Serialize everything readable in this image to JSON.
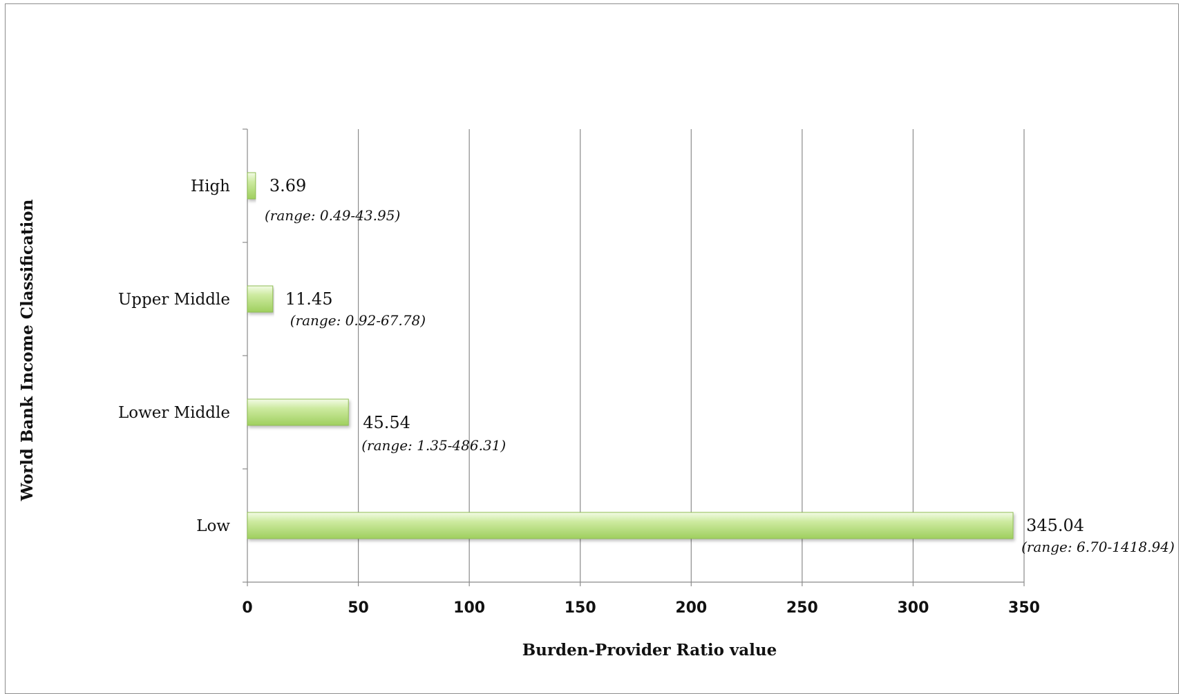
{
  "chart_data": {
    "type": "bar",
    "orientation": "horizontal",
    "title": "",
    "xlabel": "Burden-Provider Ratio value",
    "ylabel": "World Bank Income Classification",
    "xlim": [
      0,
      350
    ],
    "xticks": [
      "0",
      "50",
      "100",
      "150",
      "200",
      "250",
      "300",
      "350"
    ],
    "grid": true,
    "bar_color": "#b5dc7c",
    "categories": [
      "High",
      "Upper Middle",
      "Lower Middle",
      "Low"
    ],
    "values": [
      3.69,
      11.45,
      45.54,
      345.04
    ],
    "value_labels": [
      "3.69",
      "11.45",
      "45.54",
      "345.04"
    ],
    "range_labels": [
      "(range: 0.49-43.95)",
      "(range: 0.92-67.78)",
      "(range: 1.35-486.31)",
      "(range: 6.70-1418.94)"
    ]
  }
}
